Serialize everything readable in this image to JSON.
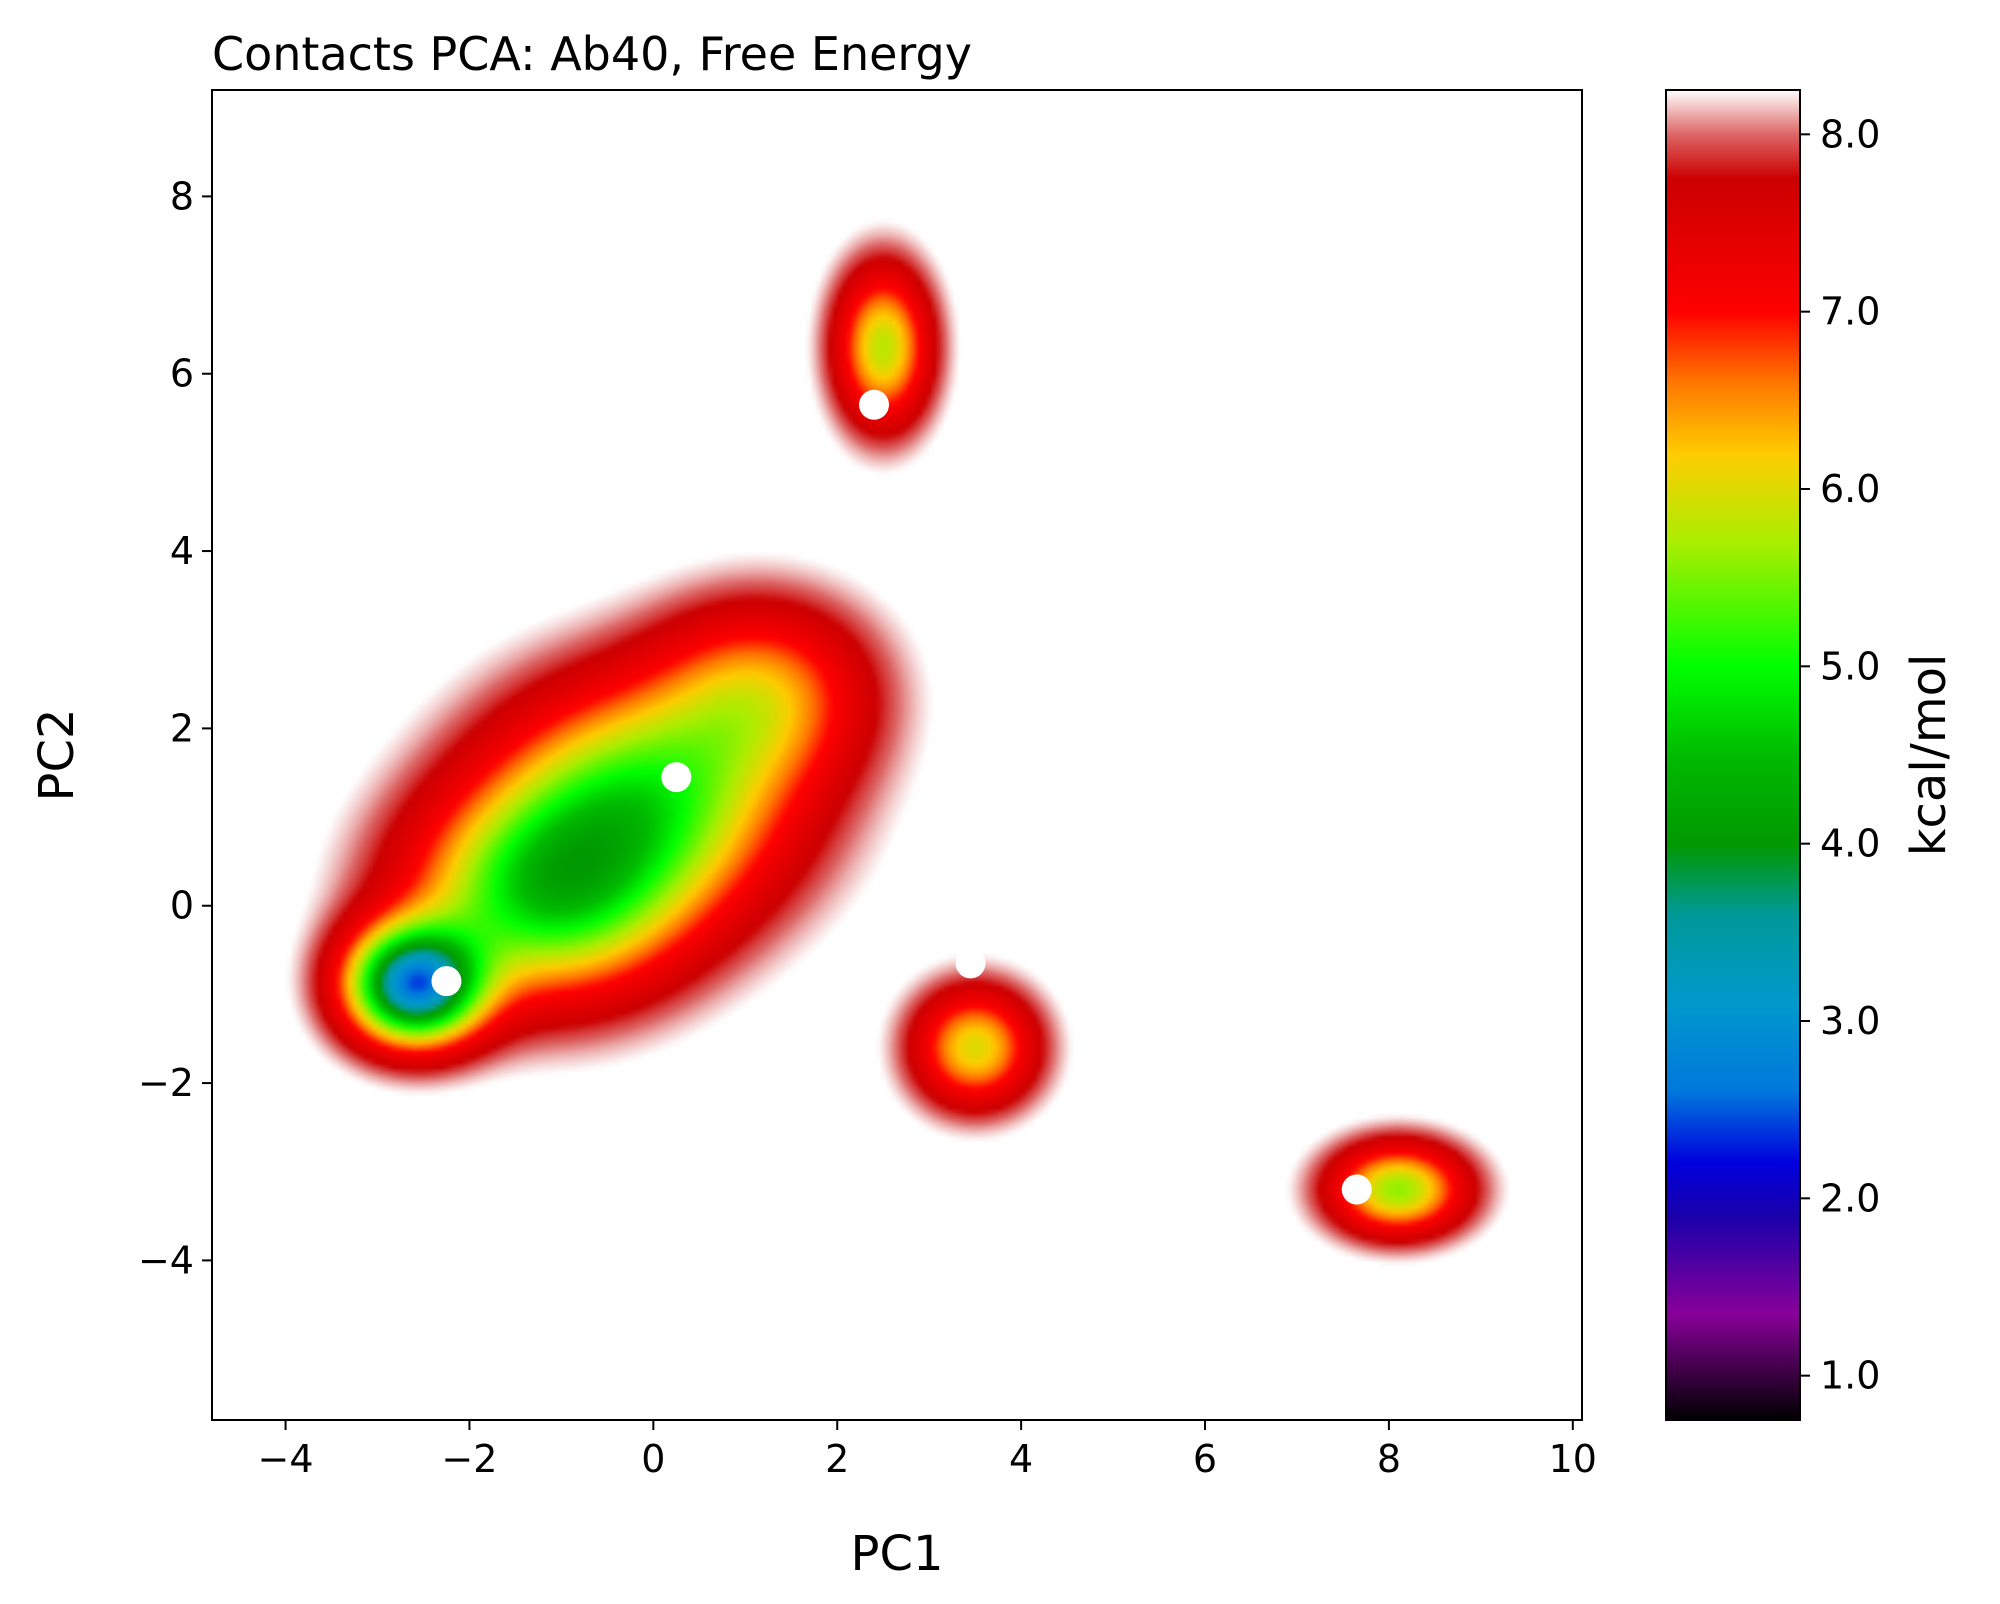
{
  "chart_data": {
    "type": "heatmap",
    "title": "Contacts PCA: Ab40, Free Energy",
    "xlabel": "PC1",
    "ylabel": "PC2",
    "xlim": [
      -4.8,
      10.1
    ],
    "ylim": [
      -5.8,
      9.2
    ],
    "xticks": [
      -4,
      -2,
      0,
      2,
      4,
      6,
      8,
      10
    ],
    "xtick_labels": [
      "−4",
      "−2",
      "0",
      "2",
      "4",
      "6",
      "8",
      "10"
    ],
    "yticks": [
      -4,
      -2,
      0,
      2,
      4,
      6,
      8
    ],
    "ytick_labels": [
      "−4",
      "−2",
      "0",
      "2",
      "4",
      "6",
      "8"
    ],
    "colorbar": {
      "label": "kcal/mol",
      "range": [
        0.75,
        8.25
      ],
      "ticks": [
        1.0,
        2.0,
        3.0,
        4.0,
        5.0,
        6.0,
        7.0,
        8.0
      ],
      "tick_labels": [
        "1.0",
        "2.0",
        "3.0",
        "4.0",
        "5.0",
        "6.0",
        "7.0",
        "8.0"
      ],
      "stops": [
        {
          "value": 0.75,
          "color": "#000000"
        },
        {
          "value": 1.35,
          "color": "#880099"
        },
        {
          "value": 1.9,
          "color": "#1a00aa"
        },
        {
          "value": 2.2,
          "color": "#0000dd"
        },
        {
          "value": 2.6,
          "color": "#0077dd"
        },
        {
          "value": 3.1,
          "color": "#0099cc"
        },
        {
          "value": 3.6,
          "color": "#009999"
        },
        {
          "value": 4.0,
          "color": "#009900"
        },
        {
          "value": 4.5,
          "color": "#00bb00"
        },
        {
          "value": 5.0,
          "color": "#00ff00"
        },
        {
          "value": 5.7,
          "color": "#aaee00"
        },
        {
          "value": 6.2,
          "color": "#ffcc00"
        },
        {
          "value": 6.6,
          "color": "#ff7700"
        },
        {
          "value": 7.0,
          "color": "#ff0000"
        },
        {
          "value": 7.75,
          "color": "#cc0000"
        },
        {
          "value": 8.0,
          "color": "#dd6666"
        },
        {
          "value": 8.25,
          "color": "#ffffff"
        }
      ]
    },
    "basins": [
      {
        "x": -2.6,
        "y": -0.9,
        "sx": 0.5,
        "sy": 0.45,
        "depth": 2.7
      },
      {
        "x": -1.2,
        "y": 0.1,
        "sx": 1.0,
        "sy": 0.8,
        "depth": 1.6
      },
      {
        "x": -0.1,
        "y": 1.2,
        "sx": 1.1,
        "sy": 0.9,
        "depth": 1.5
      },
      {
        "x": 1.2,
        "y": 2.4,
        "sx": 0.8,
        "sy": 0.7,
        "depth": 0.9
      },
      {
        "x": 2.5,
        "y": 6.3,
        "sx": 0.35,
        "sy": 0.6,
        "depth": 1.3
      },
      {
        "x": 3.5,
        "y": -1.6,
        "sx": 0.45,
        "sy": 0.45,
        "depth": 1.2
      },
      {
        "x": 8.1,
        "y": -3.2,
        "sx": 0.5,
        "sy": 0.35,
        "depth": 1.4
      }
    ],
    "points": [
      {
        "x": -2.25,
        "y": -0.85
      },
      {
        "x": 0.25,
        "y": 1.45
      },
      {
        "x": 2.4,
        "y": 5.65
      },
      {
        "x": 3.45,
        "y": -0.65
      },
      {
        "x": 7.65,
        "y": -3.2
      }
    ],
    "point_color": "#ffffff"
  }
}
